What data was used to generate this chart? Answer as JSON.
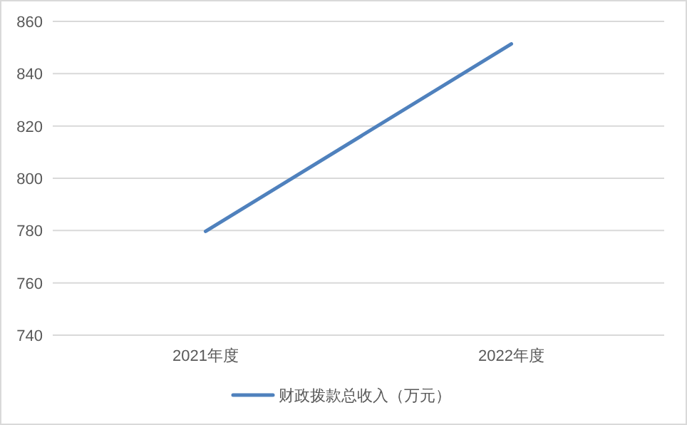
{
  "chart_data": {
    "type": "line",
    "categories": [
      "2021年度",
      "2022年度"
    ],
    "series": [
      {
        "name": "财政拨款总收入（万元）",
        "color": "#4f81bd",
        "values": [
          779.7,
          851.4
        ]
      }
    ],
    "ylim": [
      740,
      860
    ],
    "yticks": [
      740,
      760,
      780,
      800,
      820,
      840,
      860
    ],
    "grid": "y",
    "legend": "bottom"
  }
}
